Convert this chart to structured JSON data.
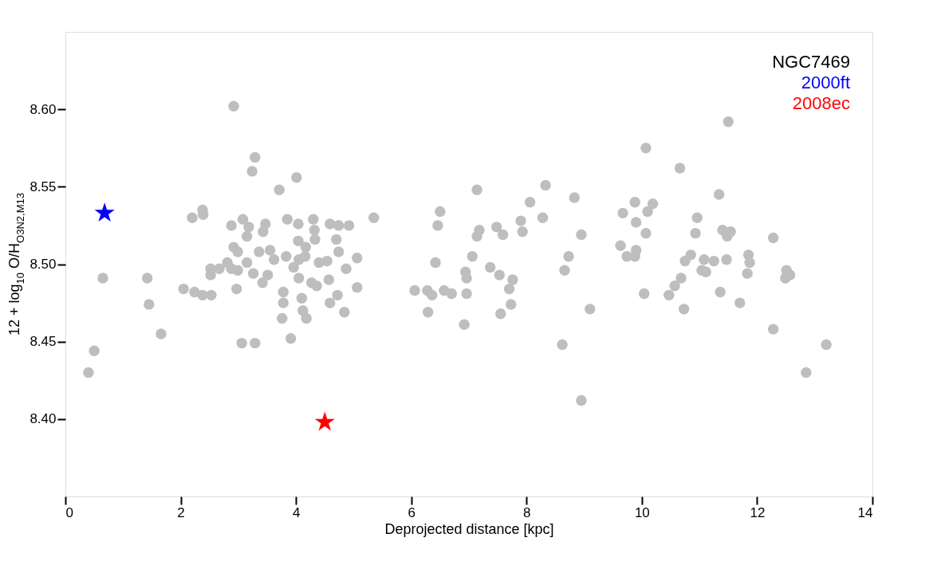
{
  "chart_data": {
    "type": "scatter",
    "xlabel": "Deprojected distance [kpc]",
    "ylabel": "12 + log$_{10}$ O/H$_{O3N2,M13}$",
    "xlim": [
      0,
      14
    ],
    "xticks": [
      0,
      2,
      4,
      6,
      8,
      10,
      12,
      14
    ],
    "ylim": [
      8.35,
      8.65
    ],
    "yticks": [
      {
        "value": 8.4,
        "label": "8.40"
      },
      {
        "value": 8.45,
        "label": "8.45"
      },
      {
        "value": 8.5,
        "label": "8.50"
      },
      {
        "value": 8.55,
        "label": "8.55"
      },
      {
        "value": 8.6,
        "label": "8.60"
      }
    ],
    "grid": false,
    "legend": "top right",
    "annotations": [
      "NGC7469"
    ],
    "series": [
      {
        "color": "#bebebe",
        "marker": "circle",
        "x": [
          0.4,
          0.5,
          0.65,
          1.42,
          1.45,
          1.66,
          2.05,
          2.24,
          2.38,
          2.53,
          2.2,
          2.39,
          2.38,
          2.52,
          2.52,
          2.67,
          2.81,
          2.88,
          2.99,
          2.97,
          2.92,
          3.29,
          3.24,
          4.01,
          3.71,
          2.88,
          3.08,
          3.18,
          3.15,
          3.43,
          3.47,
          2.92,
          2.99,
          3.15,
          3.26,
          3.42,
          3.51,
          3.36,
          3.55,
          3.62,
          3.83,
          3.85,
          4.04,
          4.3,
          4.32,
          4.33,
          4.04,
          4.17,
          4.16,
          4.05,
          3.96,
          4.4,
          4.54,
          4.05,
          4.27,
          4.36,
          4.57,
          4.59,
          4.74,
          4.92,
          4.7,
          4.74,
          5.06,
          4.87,
          5.06,
          5.35,
          3.78,
          3.78,
          3.76,
          3.91,
          4.1,
          4.12,
          4.18,
          4.72,
          4.59,
          4.84,
          3.06,
          3.29,
          7.14,
          8.33,
          8.06,
          8.28,
          8.83,
          8.95,
          6.5,
          6.46,
          7.18,
          7.14,
          7.48,
          7.59,
          7.9,
          7.93,
          6.42,
          7.06,
          6.94,
          6.96,
          7.37,
          7.53,
          7.76,
          7.7,
          7.73,
          7.55,
          6.06,
          6.28,
          6.36,
          6.57,
          6.7,
          6.96,
          6.29,
          6.92,
          8.73,
          8.66,
          9.1,
          8.62,
          8.95,
          11.5,
          10.07,
          10.66,
          11.34,
          9.88,
          10.19,
          10.1,
          9.67,
          9.9,
          10.07,
          10.96,
          10.93,
          11.4,
          11.54,
          11.48,
          12.28,
          9.63,
          9.9,
          9.74,
          9.88,
          10.85,
          10.75,
          11.08,
          11.25,
          11.47,
          11.04,
          11.11,
          11.85,
          11.87,
          11.83,
          12.51,
          12.57,
          12.49,
          10.68,
          10.57,
          10.47,
          10.04,
          11.36,
          10.73,
          11.7,
          12.28,
          13.2,
          12.85
        ],
        "values": [
          8.43,
          8.444,
          8.491,
          8.491,
          8.474,
          8.455,
          8.484,
          8.482,
          8.48,
          8.48,
          8.53,
          8.532,
          8.535,
          8.497,
          8.493,
          8.497,
          8.501,
          8.497,
          8.496,
          8.484,
          8.602,
          8.569,
          8.56,
          8.556,
          8.548,
          8.525,
          8.529,
          8.524,
          8.518,
          8.521,
          8.526,
          8.511,
          8.508,
          8.501,
          8.494,
          8.488,
          8.493,
          8.508,
          8.509,
          8.503,
          8.505,
          8.529,
          8.526,
          8.529,
          8.522,
          8.516,
          8.515,
          8.511,
          8.505,
          8.503,
          8.498,
          8.501,
          8.502,
          8.491,
          8.488,
          8.486,
          8.49,
          8.526,
          8.525,
          8.525,
          8.516,
          8.508,
          8.504,
          8.497,
          8.485,
          8.53,
          8.482,
          8.475,
          8.465,
          8.452,
          8.478,
          8.47,
          8.465,
          8.48,
          8.475,
          8.469,
          8.449,
          8.449,
          8.548,
          8.551,
          8.54,
          8.53,
          8.543,
          8.519,
          8.534,
          8.525,
          8.522,
          8.518,
          8.524,
          8.519,
          8.528,
          8.521,
          8.501,
          8.505,
          8.495,
          8.491,
          8.498,
          8.493,
          8.49,
          8.484,
          8.474,
          8.468,
          8.483,
          8.483,
          8.48,
          8.483,
          8.481,
          8.481,
          8.469,
          8.461,
          8.505,
          8.496,
          8.471,
          8.448,
          8.412,
          8.592,
          8.575,
          8.562,
          8.545,
          8.54,
          8.539,
          8.534,
          8.533,
          8.527,
          8.52,
          8.53,
          8.52,
          8.522,
          8.521,
          8.518,
          8.517,
          8.512,
          8.509,
          8.505,
          8.505,
          8.506,
          8.502,
          8.503,
          8.502,
          8.503,
          8.496,
          8.495,
          8.506,
          8.501,
          8.494,
          8.496,
          8.493,
          8.491,
          8.491,
          8.486,
          8.48,
          8.481,
          8.482,
          8.471,
          8.475,
          8.458,
          8.448,
          8.43
        ]
      },
      {
        "name": "2000ft",
        "color": "#0000ff",
        "marker": "star",
        "x": [
          0.68
        ],
        "values": [
          8.533
        ]
      },
      {
        "name": "2008ec",
        "color": "#ff0000",
        "marker": "star",
        "x": [
          4.5
        ],
        "values": [
          8.398
        ]
      }
    ]
  }
}
